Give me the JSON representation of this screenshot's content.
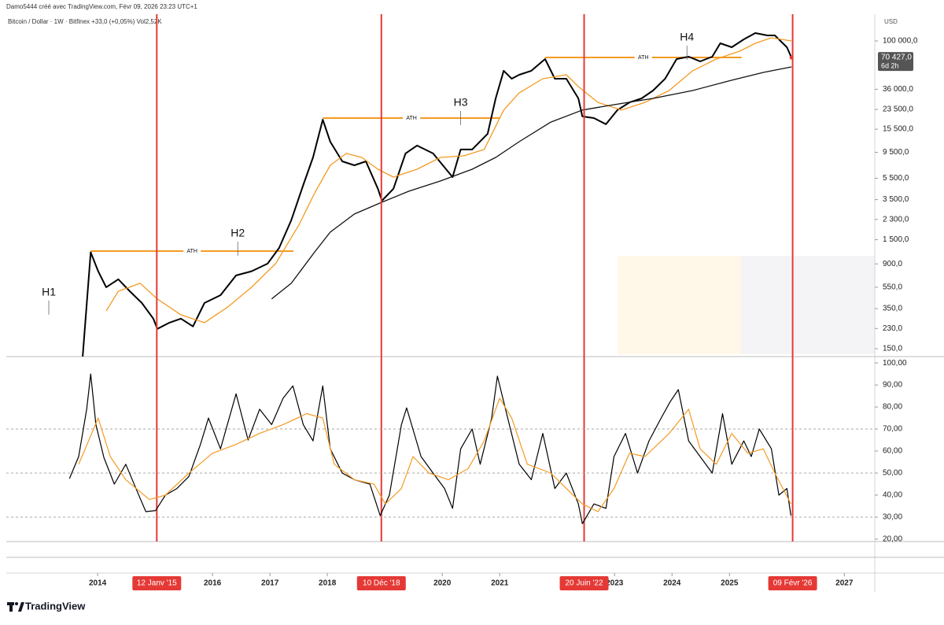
{
  "header": "Damo5444 créé avec TradingView.com, Févr 09, 2026 23:23 UTC+1",
  "legend": "Bitcoin / Dollar · 1W · Bitfinex  +33,0 (+0,05%)  Vol2,52K",
  "brand": "TradingView",
  "currency": "USD",
  "chart_data": [
    {
      "type": "line",
      "log_scale": true,
      "xlim": [
        2012.41,
        2027.53
      ],
      "ylim": [
        127,
        176000
      ],
      "xticks": [
        2014,
        2016,
        2017,
        2018,
        2020,
        2021,
        2023,
        2024,
        2025,
        2027
      ],
      "yticks": [
        {
          "value": 100000,
          "label": "100 000,0"
        },
        {
          "value": 36000,
          "label": "36 000,0"
        },
        {
          "value": 23500,
          "label": "23 500,0"
        },
        {
          "value": 15500,
          "label": "15 500,0"
        },
        {
          "value": 9500,
          "label": "9 500,0"
        },
        {
          "value": 5500,
          "label": "5 500,0"
        },
        {
          "value": 3500,
          "label": "3 500,0"
        },
        {
          "value": 2300,
          "label": "2 300,0"
        },
        {
          "value": 1500,
          "label": "1 500,0"
        },
        {
          "value": 900,
          "label": "900,0"
        },
        {
          "value": 550,
          "label": "550,0"
        },
        {
          "value": 350,
          "label": "350,0"
        },
        {
          "value": 230,
          "label": "230,0"
        },
        {
          "value": 150,
          "label": "150,0"
        }
      ],
      "series": [
        {
          "color": "#000000",
          "width": 2,
          "x": [
            2013.74,
            2013.88,
            2014.01,
            2014.15,
            2014.36,
            2014.56,
            2014.77,
            2014.97,
            2015.04,
            2015.25,
            2015.45,
            2015.66,
            2015.86,
            2016.14,
            2016.41,
            2016.68,
            2016.96,
            2017.16,
            2017.37,
            2017.58,
            2017.75,
            2017.92,
            2018.05,
            2018.26,
            2018.47,
            2018.67,
            2018.88,
            2018.95,
            2019.15,
            2019.36,
            2019.56,
            2019.84,
            2020.18,
            2020.32,
            2020.52,
            2020.79,
            2020.93,
            2021.07,
            2021.21,
            2021.34,
            2021.55,
            2021.79,
            2021.96,
            2022.16,
            2022.37,
            2022.44,
            2022.64,
            2022.85,
            2023.05,
            2023.26,
            2023.47,
            2023.67,
            2023.88,
            2024.08,
            2024.29,
            2024.49,
            2024.7,
            2024.84,
            2025.04,
            2025.25,
            2025.45,
            2025.66,
            2025.79,
            2026.0,
            2026.08
          ],
          "values": [
            127,
            1150,
            770,
            550,
            650,
            505,
            394,
            283,
            228,
            260,
            283,
            240,
            394,
            465,
            705,
            770,
            905,
            1260,
            2260,
            4770,
            8530,
            18970,
            11900,
            7850,
            7230,
            7850,
            4400,
            3420,
            4400,
            9290,
            10960,
            9290,
            5630,
            10090,
            10090,
            14070,
            29700,
            53200,
            45000,
            48900,
            53200,
            68200,
            45000,
            45000,
            29700,
            20300,
            19600,
            17200,
            23200,
            27300,
            29700,
            35100,
            45000,
            68200,
            71700,
            64900,
            71700,
            95100,
            87500,
            103300,
            118000,
            112300,
            112300,
            87500,
            70427
          ]
        },
        {
          "color": "#f59a23",
          "width": 1.3,
          "x": [
            2014.15,
            2014.36,
            2014.74,
            2015.04,
            2015.45,
            2015.86,
            2016.27,
            2016.68,
            2017.1,
            2017.51,
            2017.78,
            2018.05,
            2018.33,
            2018.6,
            2018.88,
            2019.15,
            2019.56,
            2019.97,
            2020.38,
            2020.73,
            2021.07,
            2021.34,
            2021.75,
            2022.16,
            2022.37,
            2022.71,
            2023.12,
            2023.53,
            2023.95,
            2024.36,
            2024.77,
            2025.18,
            2025.45,
            2025.73,
            2026.08
          ],
          "values": [
            333,
            505,
            597,
            429,
            307,
            260,
            363,
            550,
            905,
            2080,
            4040,
            7230,
            9290,
            8530,
            6650,
            5630,
            6650,
            8530,
            8830,
            10090,
            23200,
            33400,
            45000,
            48900,
            38100,
            27300,
            23200,
            27300,
            35100,
            53200,
            68200,
            80500,
            95100,
            106900,
            100000
          ]
        },
        {
          "color": "#111111",
          "width": 1.3,
          "x": [
            2017.03,
            2017.37,
            2017.78,
            2018.05,
            2018.47,
            2018.95,
            2019.42,
            2019.97,
            2020.52,
            2020.93,
            2021.34,
            2021.89,
            2022.44,
            2022.99,
            2023.67,
            2024.36,
            2025.04,
            2025.59,
            2026.08
          ],
          "values": [
            429,
            597,
            1160,
            1760,
            2580,
            3310,
            4180,
            5190,
            6650,
            8530,
            11900,
            18000,
            23200,
            26000,
            29700,
            35100,
            43600,
            51400,
            57800
          ]
        }
      ],
      "ath_lines": [
        {
          "label": "ATH",
          "x": [
            2013.88,
            2017.41
          ],
          "value": 1180
        },
        {
          "label": "ATH",
          "x": [
            2017.92,
            2021.01
          ],
          "value": 19600
        },
        {
          "label": "ATH",
          "x": [
            2021.79,
            2025.21
          ],
          "value": 70500
        }
      ],
      "labels": [
        {
          "text": "H1",
          "x": 2013.15,
          "value": 490
        },
        {
          "text": "H2",
          "x": 2016.44,
          "value": 1700
        },
        {
          "text": "H3",
          "x": 2020.32,
          "value": 26900
        },
        {
          "text": "H4",
          "x": 2024.26,
          "value": 106900
        }
      ],
      "markers": [
        {
          "x": 2015.03,
          "label": "12 Janv '15"
        },
        {
          "x": 2018.94,
          "label": "10 Déc '18"
        },
        {
          "x": 2022.47,
          "label": "20 Juin '22"
        },
        {
          "x": 2026.1,
          "label": "09 Févr '26"
        }
      ],
      "last_price": {
        "value": 70427,
        "label": "70 427,0",
        "countdown": "6d 2h"
      }
    },
    {
      "type": "line",
      "xlim": [
        2012.41,
        2027.53
      ],
      "ylim": [
        18.9,
        102.9
      ],
      "yticks": [
        {
          "value": 100,
          "label": "100,00"
        },
        {
          "value": 90,
          "label": "90,00"
        },
        {
          "value": 80,
          "label": "80,00"
        },
        {
          "value": 70,
          "label": "70,00"
        },
        {
          "value": 60,
          "label": "60,00"
        },
        {
          "value": 50,
          "label": "50,00"
        },
        {
          "value": 40,
          "label": "40,00"
        },
        {
          "value": 30,
          "label": "30,00"
        },
        {
          "value": 20,
          "label": "20,00"
        }
      ],
      "levels": [
        70,
        50,
        30
      ],
      "series": [
        {
          "color": "#000000",
          "width": 1.2,
          "x": [
            2013.51,
            2013.67,
            2013.81,
            2013.88,
            2013.97,
            2014.11,
            2014.29,
            2014.49,
            2014.7,
            2014.84,
            2015.01,
            2015.18,
            2015.38,
            2015.59,
            2015.79,
            2015.93,
            2016.14,
            2016.41,
            2016.62,
            2016.82,
            2017.03,
            2017.23,
            2017.4,
            2017.58,
            2017.75,
            2017.92,
            2018.05,
            2018.26,
            2018.47,
            2018.74,
            2018.92,
            2019.08,
            2019.29,
            2019.38,
            2019.63,
            2019.84,
            2020.04,
            2020.18,
            2020.32,
            2020.52,
            2020.66,
            2020.86,
            2020.96,
            2021.14,
            2021.34,
            2021.55,
            2021.75,
            2021.96,
            2022.16,
            2022.37,
            2022.44,
            2022.64,
            2022.85,
            2022.99,
            2023.19,
            2023.4,
            2023.6,
            2023.81,
            2023.97,
            2024.11,
            2024.29,
            2024.49,
            2024.7,
            2024.88,
            2025.04,
            2025.25,
            2025.38,
            2025.52,
            2025.73,
            2025.86,
            2026.0,
            2026.07
          ],
          "values": [
            47.5,
            57.5,
            79,
            95,
            72,
            57,
            45,
            54,
            41,
            32.5,
            33,
            40,
            43,
            48.5,
            63,
            75,
            61,
            86,
            65,
            79,
            72,
            84,
            89.6,
            72,
            64.6,
            89.6,
            61,
            50,
            47,
            45,
            30.7,
            40,
            72,
            79.6,
            57.5,
            50,
            43,
            34,
            61,
            70,
            54,
            75,
            94,
            75,
            54,
            47,
            68,
            43,
            50,
            36,
            27,
            36,
            34,
            57.5,
            68,
            50,
            64.6,
            75,
            82.5,
            87.9,
            64.6,
            57.5,
            50,
            77,
            54,
            64.6,
            57.5,
            70,
            61,
            40,
            43,
            30.7
          ]
        },
        {
          "color": "#f59a23",
          "width": 1.2,
          "x": [
            2013.67,
            2014.01,
            2014.22,
            2014.49,
            2014.9,
            2015.18,
            2015.59,
            2016.0,
            2016.41,
            2016.82,
            2017.23,
            2017.64,
            2017.92,
            2018.12,
            2018.47,
            2018.81,
            2019.01,
            2019.29,
            2019.49,
            2019.77,
            2020.11,
            2020.45,
            2020.73,
            2021.0,
            2021.21,
            2021.48,
            2021.89,
            2022.16,
            2022.44,
            2022.71,
            2022.99,
            2023.26,
            2023.53,
            2023.95,
            2024.29,
            2024.49,
            2024.77,
            2025.04,
            2025.32,
            2025.59,
            2025.79,
            2026.07
          ],
          "values": [
            54,
            75,
            57.5,
            47,
            38,
            40,
            50,
            59,
            63,
            68,
            72,
            77,
            75,
            54,
            47,
            45,
            36,
            43,
            57.5,
            50,
            47,
            52,
            64.6,
            84,
            75,
            54,
            50,
            43,
            36,
            32.5,
            43,
            59,
            57.5,
            68,
            79,
            61,
            54,
            68,
            59,
            61,
            50,
            36
          ]
        }
      ]
    }
  ]
}
